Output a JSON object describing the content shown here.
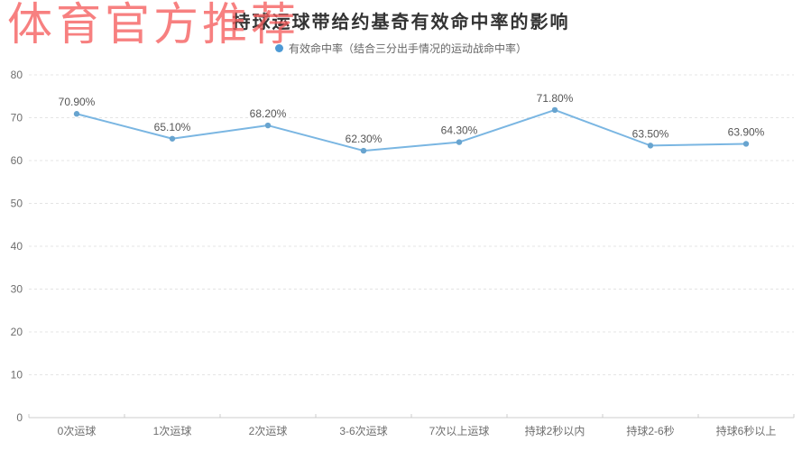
{
  "watermark": {
    "text": "体育官方推荐",
    "color": "#f55c5c"
  },
  "chart_data": {
    "type": "line",
    "title": "持球运球带给约基奇有效命中率的影响",
    "legend": {
      "label": "有效命中率（结合三分出手情况的运动战命中率）",
      "marker_color": "#4d9ad5",
      "position": "top-center"
    },
    "categories": [
      "0次运球",
      "1次运球",
      "2次运球",
      "3-6次运球",
      "7次以上运球",
      "持球2秒以内",
      "持球2-6秒",
      "持球6秒以上"
    ],
    "series": [
      {
        "name": "有效命中率",
        "values": [
          70.9,
          65.1,
          68.2,
          62.3,
          64.3,
          71.8,
          63.5,
          63.9
        ],
        "labels": [
          "70.90%",
          "65.10%",
          "68.20%",
          "62.30%",
          "64.30%",
          "71.80%",
          "63.50%",
          "63.90%"
        ],
        "color": "#7ab6e2",
        "marker_color": "#68a4cf"
      }
    ],
    "xlabel": "",
    "ylabel": "",
    "ylim": [
      0,
      80
    ],
    "yticks": [
      0,
      10,
      20,
      30,
      40,
      50,
      60,
      70,
      80
    ],
    "grid": "horizontal-dashed",
    "grid_color": "#e4e4e4",
    "axis_color": "#cccccc",
    "axis_label_color": "#6e6e6e",
    "label_color": "#555555",
    "background": "#ffffff"
  }
}
